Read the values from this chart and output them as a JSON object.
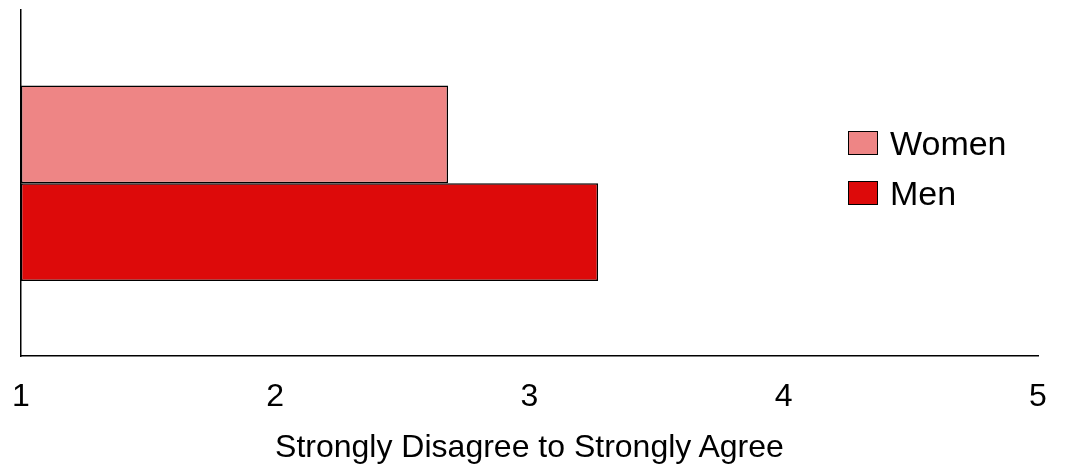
{
  "chart_data": {
    "type": "bar",
    "orientation": "horizontal",
    "xlabel": "Strongly Disagree to Strongly Agree",
    "categories": [
      null
    ],
    "series": [
      {
        "name": "Women",
        "color": "#ee8585",
        "values": [
          2.68
        ]
      },
      {
        "name": "Men",
        "color": "#dd0a0a",
        "values": [
          3.27
        ]
      }
    ],
    "xlim": [
      1,
      5
    ],
    "xticks": [
      1,
      2,
      3,
      4,
      5
    ],
    "grid": false,
    "legend": "right"
  }
}
